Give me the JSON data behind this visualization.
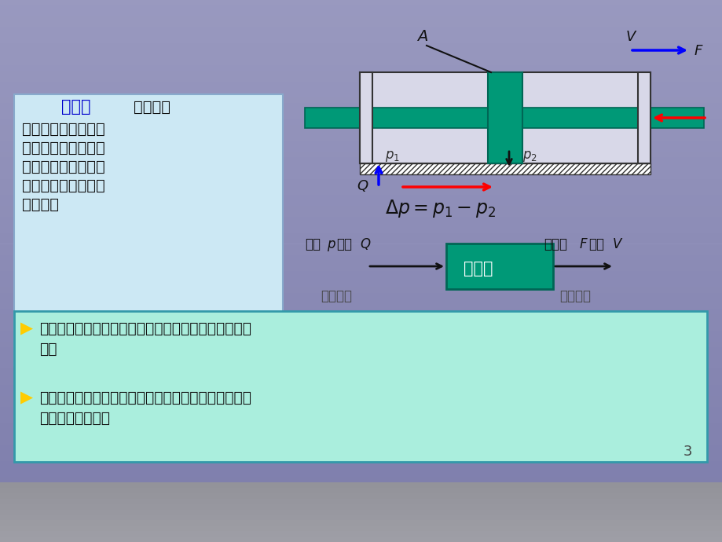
{
  "fig_w": 9.2,
  "fig_h": 6.9,
  "dpi": 100,
  "bg_color": "#9090bb",
  "teal_color": "#009977",
  "teal_edge": "#006655",
  "cylinder_fill": "#d8d8e8",
  "cylinder_edge": "#333333",
  "left_box_fill": "#cce8f4",
  "left_box_edge": "#88aacc",
  "bottom_box_fill": "#aaeedd",
  "bottom_box_edge": "#3399aa",
  "blue_arrow": "#0000ff",
  "red_arrow": "#ff0000",
  "black_arrow": "#111111",
  "title_color": "#0000cc",
  "text_color": "#111111",
  "gray_text": "#444444",
  "yellow_arrow": "#ffcc00",
  "white_text": "#ffffff",
  "page_num": "3",
  "body_lines": [
    "主要用于实现机构的",
    "直线往复运动，也可",
    "以实现摆动，其结构",
    "简单，工作可靠，应",
    "用广泛。"
  ],
  "bottom_line1a": "液压缸的输入量是液体的流量和压力，输出量是速度和",
  "bottom_line1b": "力。",
  "bottom_line2a": "液压缸和液压马达都是液压执行元件，其职能是将液压",
  "bottom_line2b": "能转换为机械能。",
  "label_p1": "$p_1$",
  "label_p2": "$p_2$",
  "label_A": "$A$",
  "label_V": "$V$",
  "label_Q": "$Q$",
  "label_F": "F",
  "formula": "$\\Delta p = p_1 - p_2$",
  "block_label": "液压缸",
  "in_label1": "压力",
  "in_label2": "流量",
  "out_label1": "作用力",
  "out_label2": "速度",
  "in_sublabel1": "$p$",
  "in_sublabel2": "$Q$",
  "out_sublabel1": "$F$",
  "out_sublabel2": "$V$",
  "liq_power": "液压功率",
  "mech_power": "机械功率",
  "title_part1": "液压缸",
  "title_part2": "（油缸）"
}
